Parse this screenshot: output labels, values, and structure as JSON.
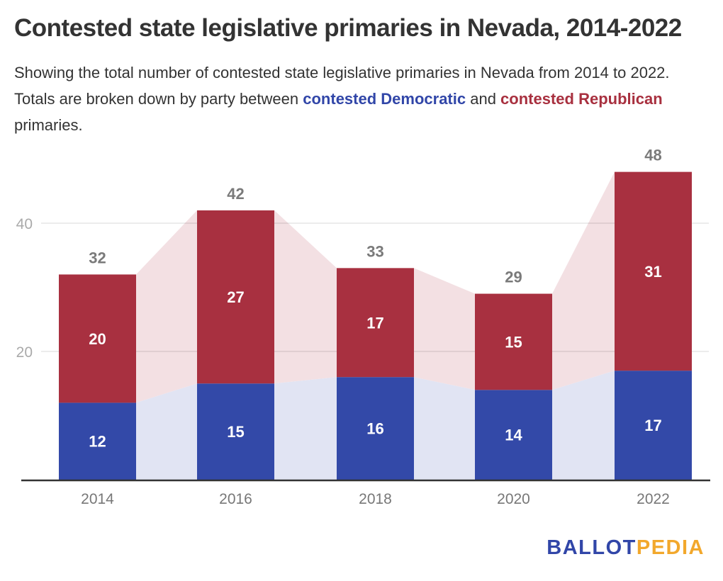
{
  "header": {
    "title": "Contested state legislative primaries in Nevada, 2014-2022",
    "subtitle_pre": "Showing the total number of contested state legislative primaries in Nevada from 2014 to 2022. Totals are broken down by party between ",
    "subtitle_dem": "contested Democratic",
    "subtitle_mid": " and ",
    "subtitle_rep": "contested Republican",
    "subtitle_post": " primaries."
  },
  "logo": {
    "part1": "BALLOT",
    "part2": "PEDIA"
  },
  "colors": {
    "democratic": "#3349a8",
    "republican": "#a83040",
    "dem_area": "#e1e4f3",
    "rep_area": "#f3e0e3",
    "total_label": "#7a7a7a",
    "axis_label": "#aaaaaa",
    "x_label": "#777777"
  },
  "chart_data": {
    "type": "bar",
    "stacked": true,
    "title": "Contested state legislative primaries in Nevada, 2014-2022",
    "xlabel": "",
    "ylabel": "",
    "categories": [
      "2014",
      "2016",
      "2018",
      "2020",
      "2022"
    ],
    "series": [
      {
        "name": "Contested Democratic primaries",
        "values": [
          12,
          15,
          16,
          14,
          17
        ]
      },
      {
        "name": "Contested Republican primaries",
        "values": [
          20,
          27,
          17,
          15,
          31
        ]
      }
    ],
    "totals": [
      32,
      42,
      33,
      29,
      48
    ],
    "yticks": [
      20,
      40
    ],
    "ylim": [
      0,
      50
    ],
    "grid": true,
    "legend": "none (inline in subtitle)"
  }
}
